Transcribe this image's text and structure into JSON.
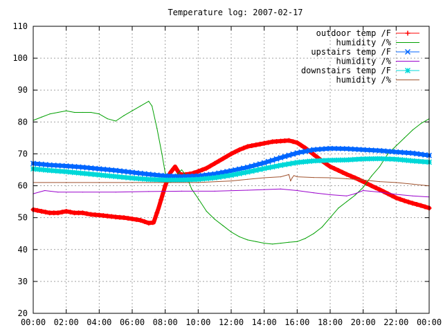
{
  "chart_data": {
    "type": "line",
    "title": "Temperature log: 2007-02-17",
    "xlabel": "",
    "ylabel": "",
    "ylim": [
      20,
      110
    ],
    "xlim": [
      0,
      24
    ],
    "x_tick_labels": [
      "00:00",
      "02:00",
      "04:00",
      "06:00",
      "08:00",
      "10:00",
      "12:00",
      "14:00",
      "16:00",
      "18:00",
      "20:00",
      "22:00",
      "00:00"
    ],
    "y_tick_labels": [
      "20",
      "30",
      "40",
      "50",
      "60",
      "70",
      "80",
      "90",
      "100",
      "110"
    ],
    "grid": true,
    "legend_position": "top-right",
    "series": [
      {
        "name": "outdoor temp /F",
        "color": "#ff0000",
        "marker": "plus",
        "x": [
          0,
          0.5,
          1,
          1.5,
          2,
          2.5,
          3,
          3.5,
          4,
          4.5,
          5,
          5.5,
          6,
          6.5,
          7,
          7.3,
          7.6,
          8,
          8.3,
          8.6,
          8.9,
          9.2,
          9.6,
          10,
          10.5,
          11,
          11.5,
          12,
          12.5,
          13,
          13.5,
          14,
          14.5,
          15,
          15.5,
          16,
          16.5,
          17,
          17.5,
          18,
          18.5,
          19,
          19.5,
          20,
          20.5,
          21,
          21.5,
          22,
          22.5,
          23,
          23.5,
          24
        ],
        "values": [
          52.5,
          52,
          51.5,
          51.5,
          52,
          51.5,
          51.5,
          51,
          50.8,
          50.5,
          50.2,
          50,
          49.6,
          49.2,
          48.3,
          48.5,
          53,
          60,
          64,
          66,
          63.5,
          63.5,
          63.8,
          64.5,
          65.5,
          67,
          68.5,
          70,
          71.3,
          72.3,
          72.8,
          73.3,
          73.8,
          74,
          74.2,
          73.5,
          71.8,
          69.8,
          67.8,
          66,
          64.8,
          63.6,
          62.5,
          61.3,
          60,
          58.8,
          57.5,
          56.2,
          55.3,
          54.5,
          53.8,
          53
        ]
      },
      {
        "name": "humidity /%",
        "color": "#00a000",
        "marker": "none",
        "x": [
          0,
          0.5,
          1,
          1.5,
          2,
          2.5,
          3,
          3.5,
          4,
          4.5,
          5,
          5.5,
          6,
          6.5,
          7,
          7.2,
          7.5,
          7.8,
          8,
          8.3,
          8.6,
          9,
          9.3,
          9.6,
          10,
          10.5,
          11,
          11.5,
          12,
          12.5,
          13,
          13.5,
          14,
          14.5,
          15,
          15.5,
          16,
          16.5,
          17,
          17.5,
          18,
          18.5,
          19,
          19.5,
          20,
          20.5,
          21,
          21.5,
          22,
          22.5,
          23,
          23.5,
          24
        ],
        "values": [
          80.5,
          81.5,
          82.5,
          83,
          83.5,
          83,
          83,
          83,
          82.5,
          81,
          80.3,
          82,
          83.5,
          85,
          86.5,
          85,
          78,
          70,
          64,
          61,
          63,
          65,
          63,
          59,
          56,
          52,
          49.5,
          47.5,
          45.5,
          44,
          43,
          42.5,
          42,
          41.7,
          42,
          42.3,
          42.5,
          43.5,
          45,
          47,
          50,
          53,
          55,
          57,
          59.5,
          63,
          66,
          70,
          72.5,
          75,
          77.5,
          79.5,
          81
        ]
      },
      {
        "name": "upstairs temp /F",
        "color": "#0066ff",
        "marker": "x",
        "x": [
          0,
          1,
          2,
          3,
          4,
          5,
          6,
          7,
          8,
          9,
          10,
          11,
          12,
          13,
          14,
          15,
          16,
          17,
          18,
          19,
          20,
          21,
          22,
          23,
          24
        ],
        "values": [
          67,
          66.5,
          66.2,
          65.8,
          65.3,
          64.8,
          64.2,
          63.6,
          63.1,
          62.9,
          63.1,
          63.7,
          64.7,
          65.8,
          67.2,
          68.8,
          70.3,
          71.3,
          71.7,
          71.6,
          71.3,
          71,
          70.6,
          70.2,
          69.5
        ]
      },
      {
        "name": "humidity /%",
        "color": "#9900cc",
        "marker": "none",
        "x": [
          0,
          0.7,
          1.5,
          3,
          5,
          7,
          9,
          11,
          13,
          15,
          16,
          17,
          18,
          19,
          19.5,
          20,
          21,
          22,
          23,
          24
        ],
        "values": [
          57.5,
          58.5,
          58,
          58,
          58,
          58.2,
          58.3,
          58.3,
          58.6,
          59,
          58.5,
          57.8,
          57.2,
          56.8,
          57.5,
          58.5,
          58,
          57.3,
          56.8,
          56.5
        ]
      },
      {
        "name": "downstairs temp /F",
        "color": "#00d8d8",
        "marker": "star",
        "x": [
          0,
          1,
          2,
          3,
          4,
          5,
          6,
          7,
          8,
          9,
          10,
          11,
          12,
          13,
          14,
          15,
          16,
          17,
          18,
          19,
          20,
          21,
          22,
          23,
          24
        ],
        "values": [
          65.3,
          64.8,
          64.4,
          63.9,
          63.4,
          62.9,
          62.4,
          62,
          61.8,
          61.8,
          62,
          62.5,
          63.3,
          64.3,
          65.4,
          66.4,
          67.3,
          67.8,
          68,
          68.1,
          68.4,
          68.5,
          68.3,
          67.8,
          67.4
        ]
      },
      {
        "name": "humidity /%",
        "color": "#a0522d",
        "marker": "none",
        "x": [
          0,
          2,
          4,
          6,
          8,
          10,
          12,
          13,
          14,
          15,
          15.5,
          15.6,
          15.7,
          15.8,
          16,
          17,
          18,
          19,
          20,
          21,
          22,
          23,
          24
        ],
        "values": [
          61,
          61,
          61,
          61,
          61,
          61,
          61.5,
          62,
          62.5,
          62.8,
          63.5,
          61.5,
          62.5,
          63.2,
          62.8,
          62.6,
          62.5,
          62.2,
          61.8,
          61.3,
          61,
          60.5,
          60
        ]
      }
    ]
  }
}
